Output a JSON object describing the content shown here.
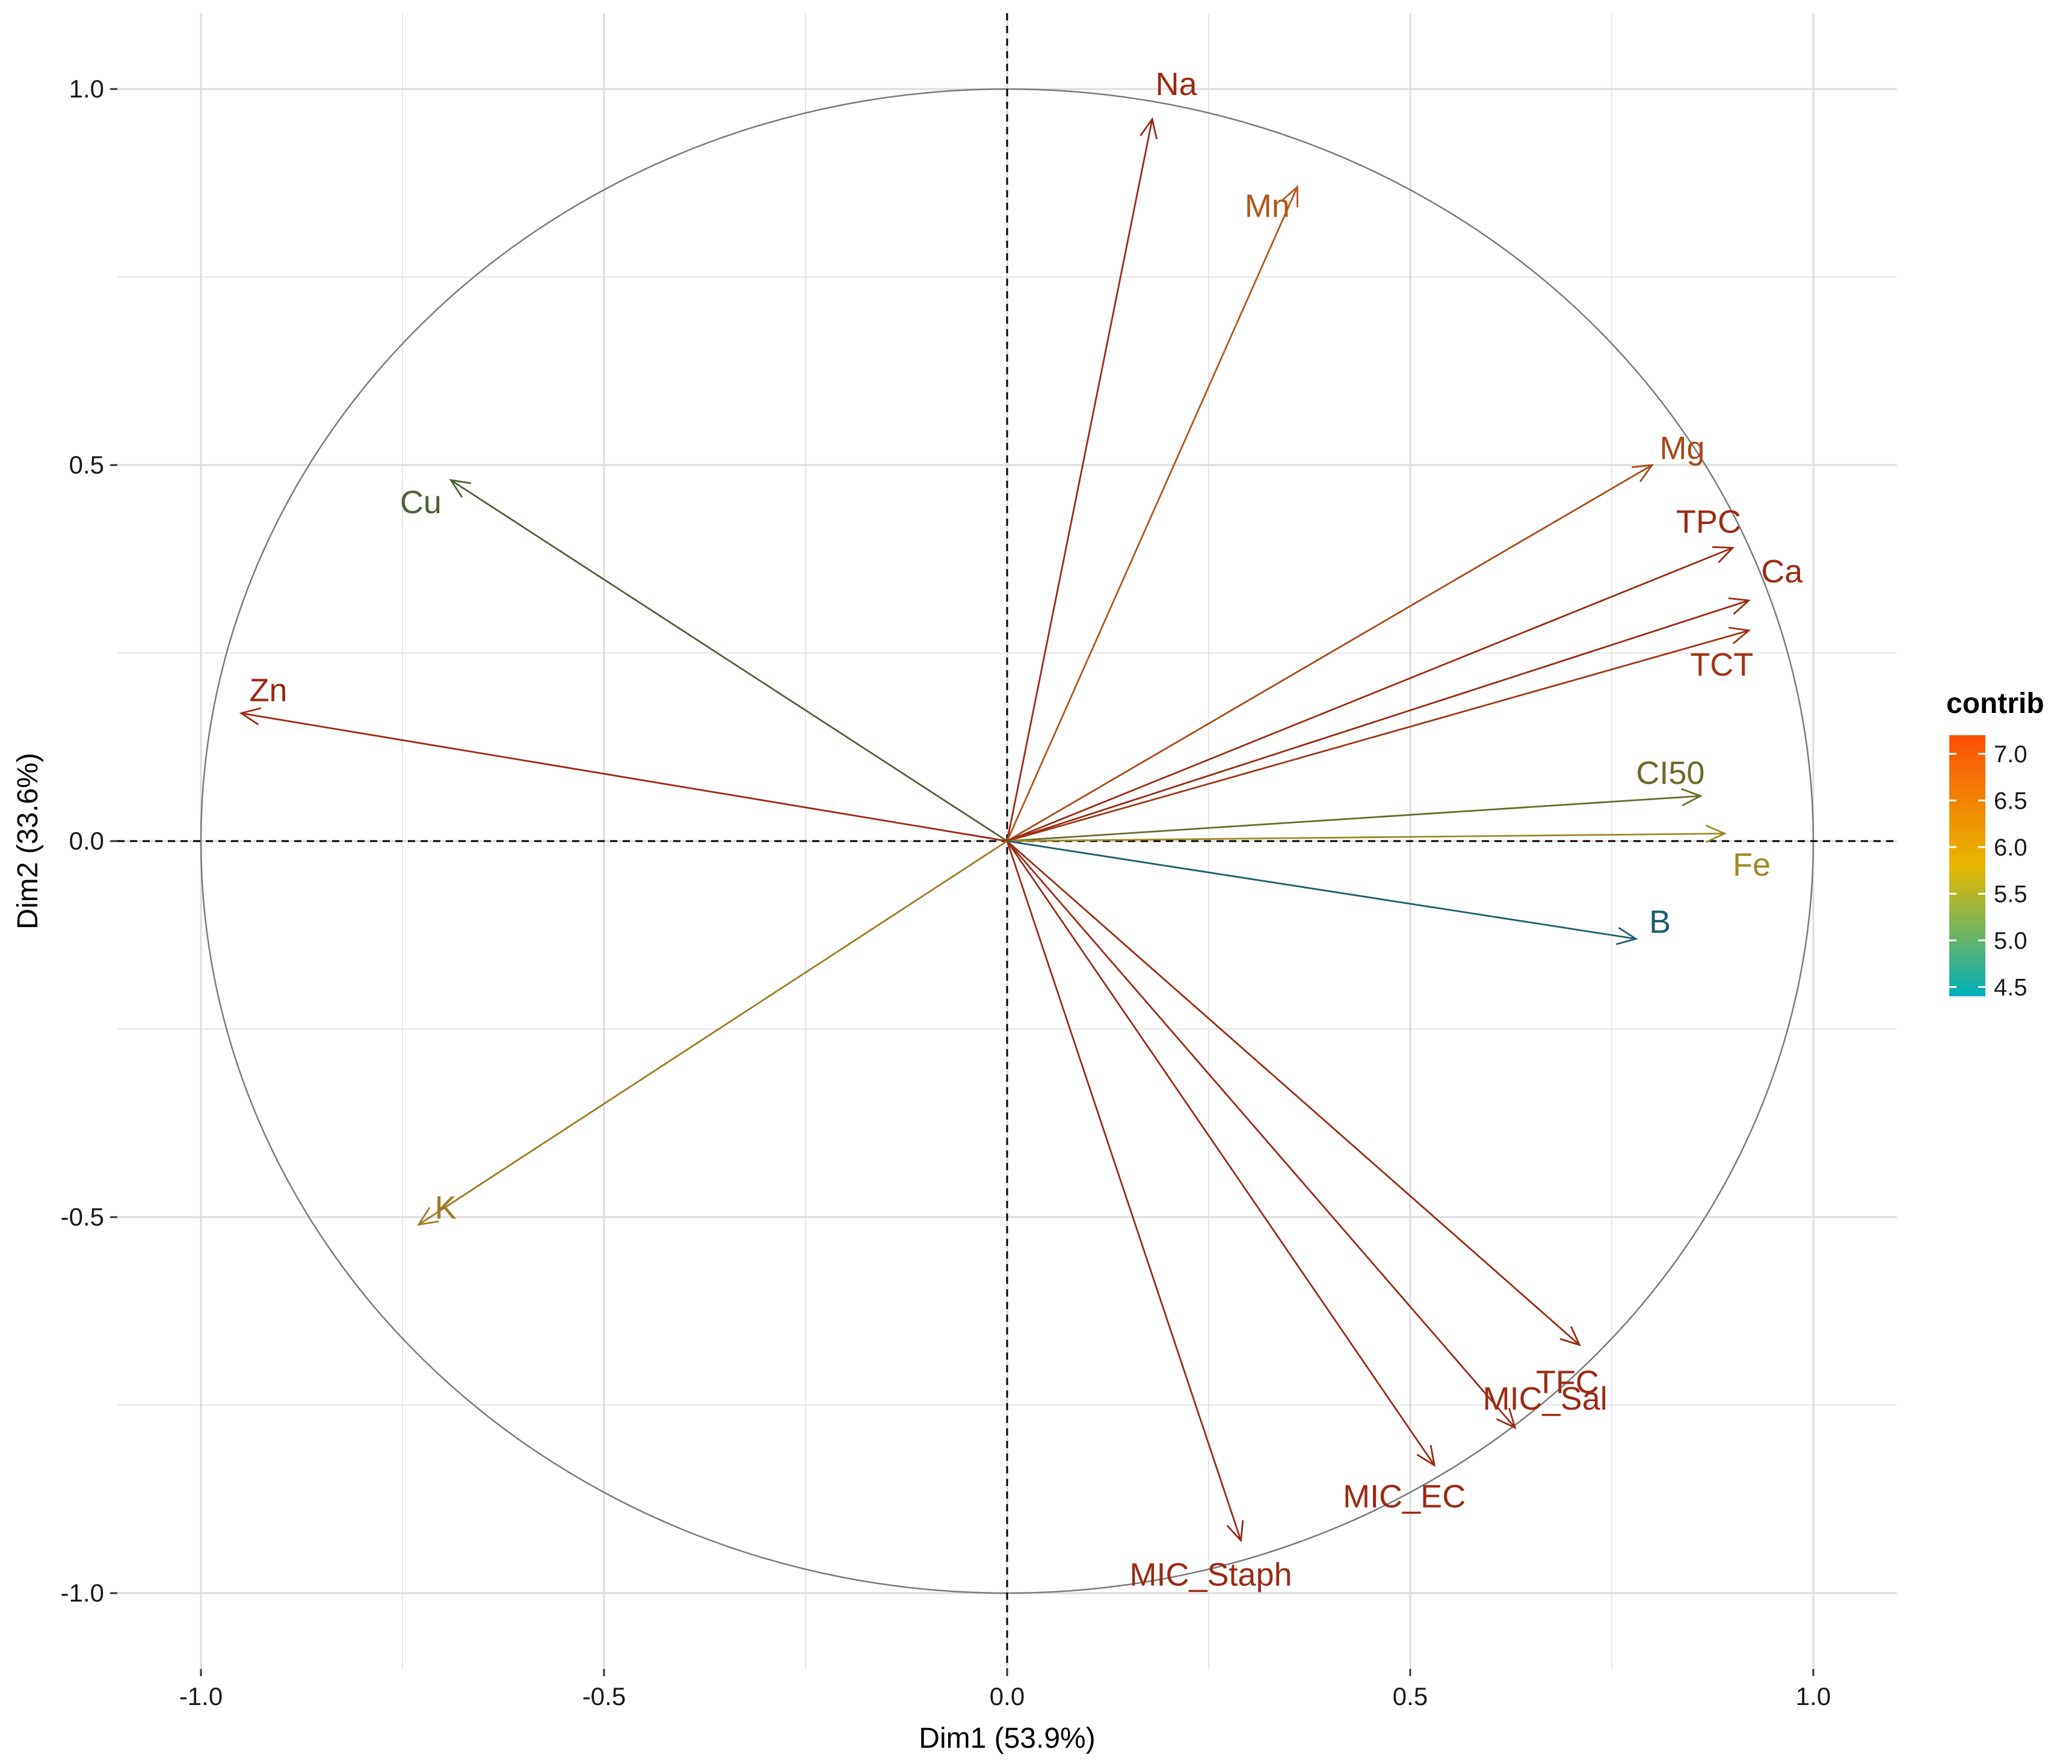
{
  "chart_data": {
    "type": "pca-variable-correlation-circle",
    "xlabel": "Dim1 (53.9%)",
    "ylabel": "Dim2 (33.6%)",
    "xlim": [
      -1.1,
      1.1
    ],
    "ylim": [
      -1.1,
      1.1
    ],
    "x_ticks": [
      {
        "value": -1.0,
        "label": "-1.0"
      },
      {
        "value": -0.5,
        "label": "-0.5"
      },
      {
        "value": 0.0,
        "label": "0.0"
      },
      {
        "value": 0.5,
        "label": "0.5"
      },
      {
        "value": 1.0,
        "label": "1.0"
      }
    ],
    "y_ticks": [
      {
        "value": 1.0,
        "label": "1.0"
      },
      {
        "value": 0.5,
        "label": "0.5"
      },
      {
        "value": 0.0,
        "label": "0.0"
      },
      {
        "value": -0.5,
        "label": "-0.5"
      },
      {
        "value": -1.0,
        "label": "-1.0"
      }
    ],
    "grid": true,
    "unit_circle": true,
    "legend": {
      "title": "contrib",
      "placement": "right",
      "range": [
        4.4,
        7.2
      ],
      "ticks": [
        {
          "value": 7.0,
          "label": "7.0"
        },
        {
          "value": 6.5,
          "label": "6.5"
        },
        {
          "value": 6.0,
          "label": "6.0"
        },
        {
          "value": 5.5,
          "label": "5.5"
        },
        {
          "value": 5.0,
          "label": "5.0"
        },
        {
          "value": 4.5,
          "label": "4.5"
        }
      ],
      "gradient": [
        "#00AFBB",
        "#E7B800",
        "#FC4E07"
      ]
    },
    "variables": [
      {
        "name": "Na",
        "x": 0.18,
        "y": 0.96,
        "contrib": 7.05,
        "color": "#9a2a14"
      },
      {
        "name": "Mn",
        "x": 0.36,
        "y": 0.87,
        "contrib": 6.3,
        "color": "#b0561a"
      },
      {
        "name": "Mg",
        "x": 0.8,
        "y": 0.5,
        "contrib": 6.6,
        "color": "#a8481a"
      },
      {
        "name": "TPC",
        "x": 0.9,
        "y": 0.39,
        "contrib": 7.0,
        "color": "#9a2a14"
      },
      {
        "name": "Ca",
        "x": 0.92,
        "y": 0.32,
        "contrib": 7.0,
        "color": "#9a2a14"
      },
      {
        "name": "TCT",
        "x": 0.92,
        "y": 0.28,
        "contrib": 6.8,
        "color": "#a03516"
      },
      {
        "name": "CI50",
        "x": 0.86,
        "y": 0.06,
        "contrib": 5.2,
        "color": "#6b6a2a"
      },
      {
        "name": "Fe",
        "x": 0.89,
        "y": 0.01,
        "contrib": 5.7,
        "color": "#9e8a25"
      },
      {
        "name": "B",
        "x": 0.78,
        "y": -0.13,
        "contrib": 4.5,
        "color": "#1d5e6e"
      },
      {
        "name": "Cu",
        "x": -0.69,
        "y": 0.48,
        "contrib": 4.9,
        "color": "#4c6236"
      },
      {
        "name": "Zn",
        "x": -0.95,
        "y": 0.17,
        "contrib": 7.05,
        "color": "#9a2a14"
      },
      {
        "name": "K",
        "x": -0.73,
        "y": -0.51,
        "contrib": 5.7,
        "color": "#9e7a22"
      },
      {
        "name": "TFC",
        "x": 0.71,
        "y": -0.67,
        "contrib": 7.0,
        "color": "#9a2a14"
      },
      {
        "name": "MIC_Sal",
        "x": 0.63,
        "y": -0.78,
        "contrib": 7.05,
        "color": "#9a2a14"
      },
      {
        "name": "MIC_EC",
        "x": 0.53,
        "y": -0.83,
        "contrib": 7.0,
        "color": "#9a2a14"
      },
      {
        "name": "MIC_Staph",
        "x": 0.29,
        "y": -0.93,
        "contrib": 7.05,
        "color": "#9a2a14"
      }
    ]
  }
}
